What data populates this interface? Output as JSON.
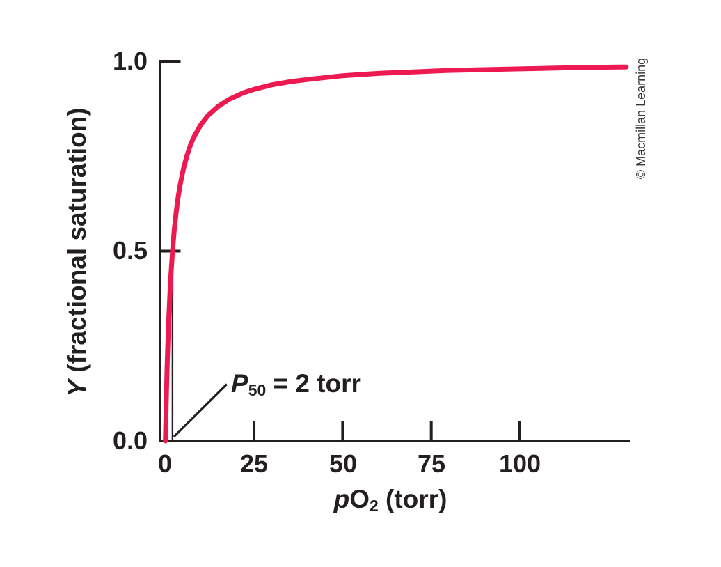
{
  "figure": {
    "copyright": "© Macmillan Learning",
    "background": "#ffffff"
  },
  "chart_data": {
    "type": "line",
    "description": "Hyperbolic oxygen-binding saturation curve with P50 = 2 torr",
    "title": "",
    "xlabel": {
      "var": "p",
      "main": "O",
      "sub": "2",
      "suffix": " (torr)"
    },
    "ylabel": {
      "var": "Y",
      "suffix": " (fractional saturation)"
    },
    "x_ticks": [
      "0",
      "25",
      "50",
      "75",
      "100"
    ],
    "x_tick_values": [
      0,
      25,
      50,
      75,
      100
    ],
    "y_ticks": [
      "0.0",
      "0.5",
      "1.0"
    ],
    "y_tick_values": [
      0,
      0.5,
      1.0
    ],
    "xlim": [
      0,
      131
    ],
    "ylim": [
      0,
      1.0
    ],
    "grid": false,
    "legend": false,
    "colors": {
      "curve": "#ed1a51",
      "axis": "#231f20",
      "annotation": "#231f20",
      "copyright": "#3a3a3c"
    },
    "series": [
      {
        "name": "fractional saturation Y",
        "p50_torr": 2,
        "equation": "Y = pO2 / (P50 + pO2)",
        "x": [
          0,
          0.25,
          0.5,
          0.75,
          1,
          1.25,
          1.5,
          2,
          2.5,
          3,
          3.5,
          4,
          5,
          6,
          7,
          8,
          10,
          12,
          15,
          18,
          22,
          25,
          30,
          35,
          40,
          50,
          60,
          70,
          80,
          90,
          100,
          110,
          120,
          130
        ],
        "y": [
          0,
          0.111,
          0.2,
          0.273,
          0.333,
          0.385,
          0.429,
          0.5,
          0.556,
          0.6,
          0.636,
          0.667,
          0.714,
          0.75,
          0.778,
          0.8,
          0.833,
          0.857,
          0.882,
          0.9,
          0.917,
          0.926,
          0.938,
          0.946,
          0.952,
          0.962,
          0.968,
          0.972,
          0.976,
          0.978,
          0.98,
          0.982,
          0.984,
          0.985
        ]
      }
    ],
    "annotation": {
      "var": "P",
      "sub": "50",
      "text": " = 2 torr",
      "value": "P50 = 2 torr",
      "points_to": {
        "x": 2,
        "y": 0
      }
    },
    "reference_line": {
      "x": 2,
      "y_from": 0,
      "y_to": 0.5
    }
  }
}
